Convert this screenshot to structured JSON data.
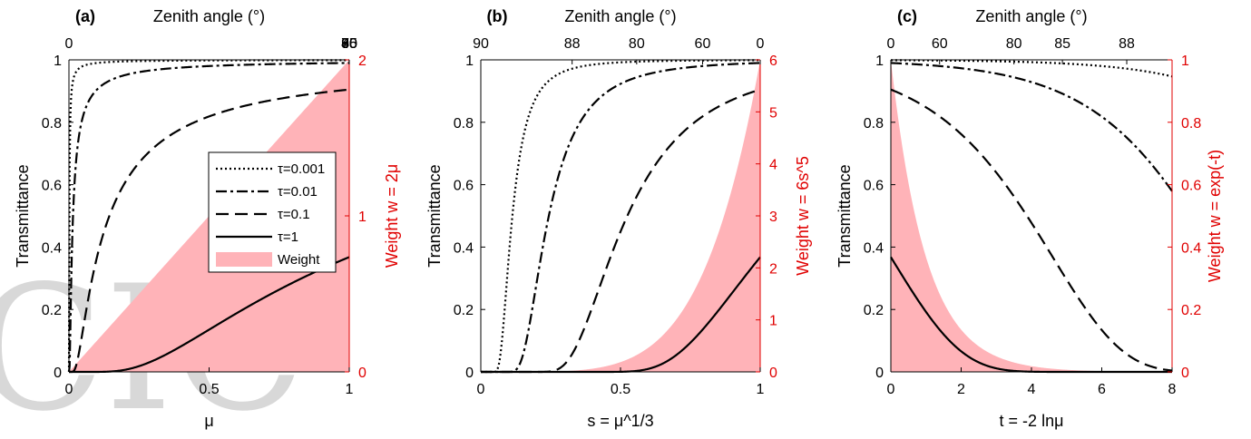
{
  "figure": {
    "panels": [
      "(a)",
      "(b)",
      "(c)"
    ],
    "top_axis_label": "Zenith angle (°)",
    "left_ylabel": "Transmittance",
    "legend": [
      "τ=0.001",
      "τ=0.01",
      "τ=0.1",
      "τ=1",
      "Weight"
    ],
    "watermark": "CIC"
  },
  "colors": {
    "weight_fill": "#ffb3b8",
    "weight_axis": "#e00000",
    "curves": "#000000"
  },
  "chart_data": [
    {
      "type": "line",
      "panel": "(a)",
      "xlabel": "μ",
      "ylabel": "Transmittance",
      "y2label": "Weight w = 2μ",
      "xlim": [
        0,
        1
      ],
      "ylim": [
        0,
        1
      ],
      "y2lim": [
        0,
        2
      ],
      "xticks": [
        "0",
        "0.5",
        "1"
      ],
      "yticks": [
        "0",
        "0.2",
        "0.4",
        "0.6",
        "0.8",
        "1"
      ],
      "y2ticks": [
        "0",
        "1",
        "2"
      ],
      "top_ticks": [
        "90",
        "75",
        "60",
        "45",
        "30",
        "0"
      ],
      "top_tick_angles_deg": [
        90,
        75,
        60,
        45,
        30,
        0
      ],
      "legend_position": "center-right",
      "series": [
        {
          "name": "τ=0.001",
          "style": "dotted"
        },
        {
          "name": "τ=0.01",
          "style": "dashdot"
        },
        {
          "name": "τ=0.1",
          "style": "dashed"
        },
        {
          "name": "τ=1",
          "style": "solid"
        },
        {
          "name": "Weight",
          "style": "fill",
          "formula": "w = 2μ"
        }
      ]
    },
    {
      "type": "line",
      "panel": "(b)",
      "xlabel": "s = μ^1/3",
      "ylabel": "Transmittance",
      "y2label": "Weight w = 6s^5",
      "xlim": [
        0,
        1
      ],
      "ylim": [
        0,
        1
      ],
      "y2lim": [
        0,
        6
      ],
      "xticks": [
        "0",
        "0.5",
        "1"
      ],
      "yticks": [
        "0",
        "0.2",
        "0.4",
        "0.6",
        "0.8",
        "1"
      ],
      "y2ticks": [
        "0",
        "1",
        "2",
        "3",
        "4",
        "5",
        "6"
      ],
      "top_ticks": [
        "90",
        "88",
        "80",
        "60",
        "0"
      ],
      "top_tick_angles_deg": [
        90,
        88,
        80,
        60,
        0
      ],
      "series": [
        {
          "name": "τ=0.001",
          "style": "dotted"
        },
        {
          "name": "τ=0.01",
          "style": "dashdot"
        },
        {
          "name": "τ=0.1",
          "style": "dashed"
        },
        {
          "name": "τ=1",
          "style": "solid"
        },
        {
          "name": "Weight",
          "style": "fill",
          "formula": "w = 6s^5"
        }
      ]
    },
    {
      "type": "line",
      "panel": "(c)",
      "xlabel": "t = -2 lnμ",
      "ylabel": "Transmittance",
      "y2label": "Weight w = exp(-t)",
      "xlim": [
        0,
        8
      ],
      "ylim": [
        0,
        1
      ],
      "y2lim": [
        0,
        1
      ],
      "xticks": [
        "0",
        "2",
        "4",
        "6",
        "8"
      ],
      "yticks": [
        "0",
        "0.2",
        "0.4",
        "0.6",
        "0.8",
        "1"
      ],
      "y2ticks": [
        "0",
        "0.2",
        "0.4",
        "0.6",
        "0.8",
        "1"
      ],
      "top_ticks": [
        "0",
        "60",
        "80",
        "85",
        "88"
      ],
      "top_tick_angles_deg": [
        0,
        60,
        80,
        85,
        88
      ],
      "series": [
        {
          "name": "τ=0.001",
          "style": "dotted"
        },
        {
          "name": "τ=0.01",
          "style": "dashdot"
        },
        {
          "name": "τ=0.1",
          "style": "dashed"
        },
        {
          "name": "τ=1",
          "style": "solid"
        },
        {
          "name": "Weight",
          "style": "fill",
          "formula": "w = exp(-t)"
        }
      ]
    }
  ]
}
